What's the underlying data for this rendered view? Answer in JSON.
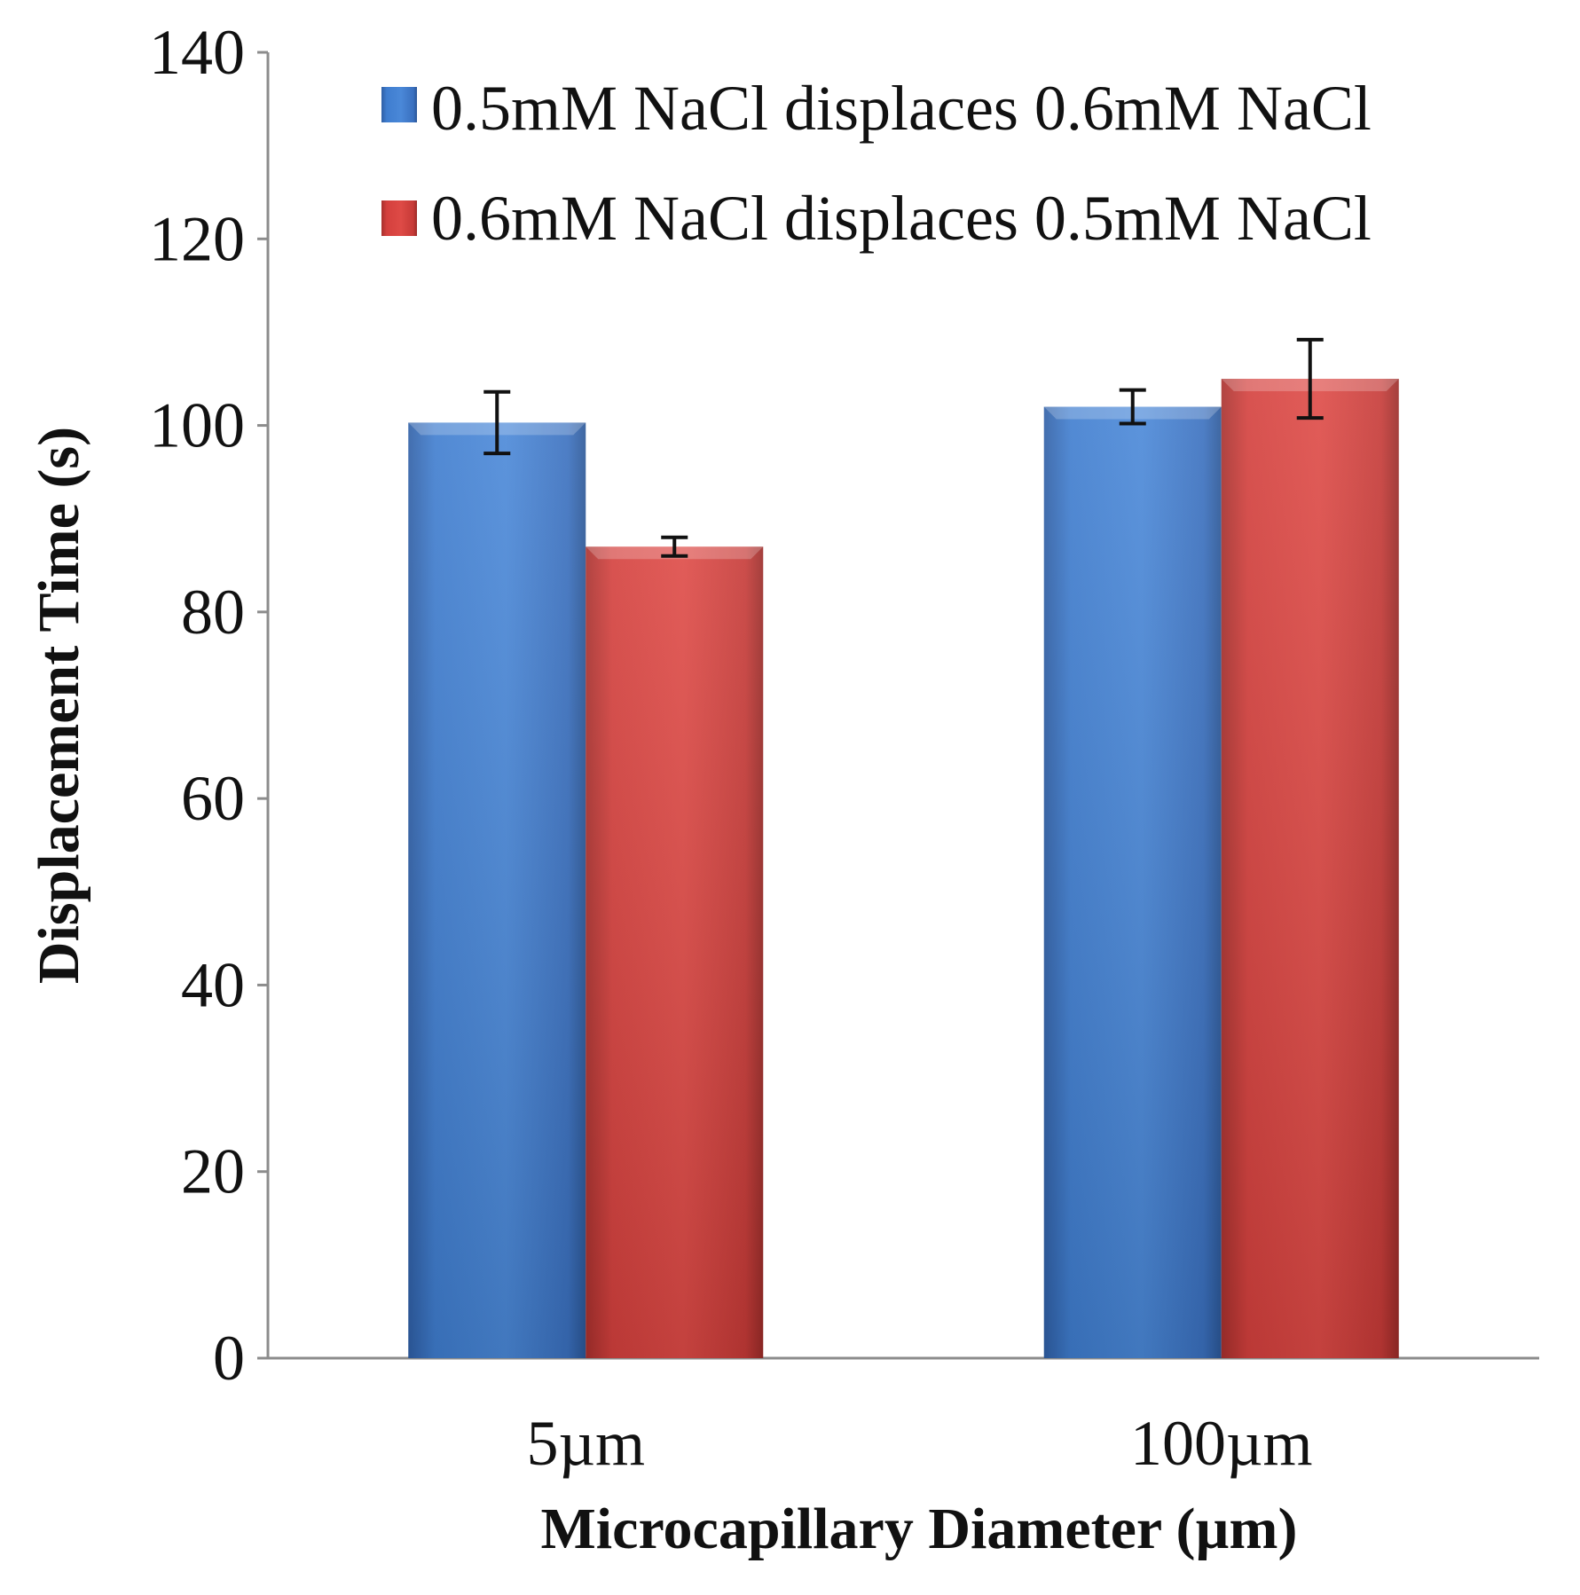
{
  "chart_data": {
    "type": "bar",
    "title": "",
    "xlabel": "Microcapillary Diameter (µm)",
    "ylabel": "Displacement Time (s)",
    "ylim": [
      0,
      140
    ],
    "yticks": [
      0,
      20,
      40,
      60,
      80,
      100,
      120,
      140
    ],
    "ytick_labels": [
      "0",
      "20",
      "40",
      "60",
      "80",
      "100",
      "120",
      "140"
    ],
    "categories": [
      "5µm",
      "100µm"
    ],
    "grid": false,
    "legend_position": "top-right",
    "series": [
      {
        "name": "0.5mM NaCl displaces 0.6mM NaCl",
        "color": "#3c76c6",
        "values": [
          100.3,
          102.0
        ],
        "errors": [
          3.3,
          1.8
        ]
      },
      {
        "name": "0.6mM NaCl displaces 0.5mM NaCl",
        "color": "#cf3c3a",
        "values": [
          87.0,
          105.0
        ],
        "errors": [
          1.0,
          4.2
        ]
      }
    ]
  }
}
